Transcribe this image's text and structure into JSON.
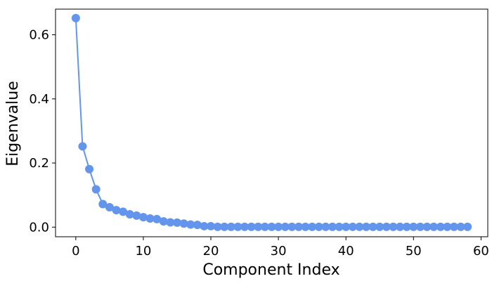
{
  "chart_data": {
    "type": "line",
    "title": "",
    "xlabel": "Component Index",
    "ylabel": "Eigenvalue",
    "xlim": [
      -3,
      61
    ],
    "ylim": [
      -0.03,
      0.68
    ],
    "xticks": [
      0,
      10,
      20,
      30,
      40,
      50,
      60
    ],
    "yticks": [
      0.0,
      0.2,
      0.4,
      0.6
    ],
    "grid": false,
    "legend": "none",
    "series": [
      {
        "color": "#6495ED",
        "marker": "circle",
        "x": [
          0,
          1,
          2,
          3,
          4,
          5,
          6,
          7,
          8,
          9,
          10,
          11,
          12,
          13,
          14,
          15,
          16,
          17,
          18,
          19,
          20,
          21,
          22,
          23,
          24,
          25,
          26,
          27,
          28,
          29,
          30,
          31,
          32,
          33,
          34,
          35,
          36,
          37,
          38,
          39,
          40,
          41,
          42,
          43,
          44,
          45,
          46,
          47,
          48,
          49,
          50,
          51,
          52,
          53,
          54,
          55,
          56,
          57,
          58
        ],
        "y": [
          0.652,
          0.252,
          0.181,
          0.118,
          0.072,
          0.062,
          0.053,
          0.048,
          0.04,
          0.036,
          0.031,
          0.027,
          0.025,
          0.018,
          0.015,
          0.014,
          0.011,
          0.008,
          0.007,
          0.003,
          0.003,
          0.001,
          0.001,
          0.001,
          0.001,
          0.001,
          0.001,
          0.001,
          0.001,
          0.001,
          0.001,
          0.001,
          0.001,
          0.001,
          0.001,
          0.001,
          0.001,
          0.001,
          0.001,
          0.001,
          0.001,
          0.001,
          0.001,
          0.001,
          0.001,
          0.001,
          0.001,
          0.001,
          0.001,
          0.001,
          0.001,
          0.001,
          0.001,
          0.001,
          0.001,
          0.001,
          0.001,
          0.001,
          0.001
        ]
      }
    ]
  }
}
